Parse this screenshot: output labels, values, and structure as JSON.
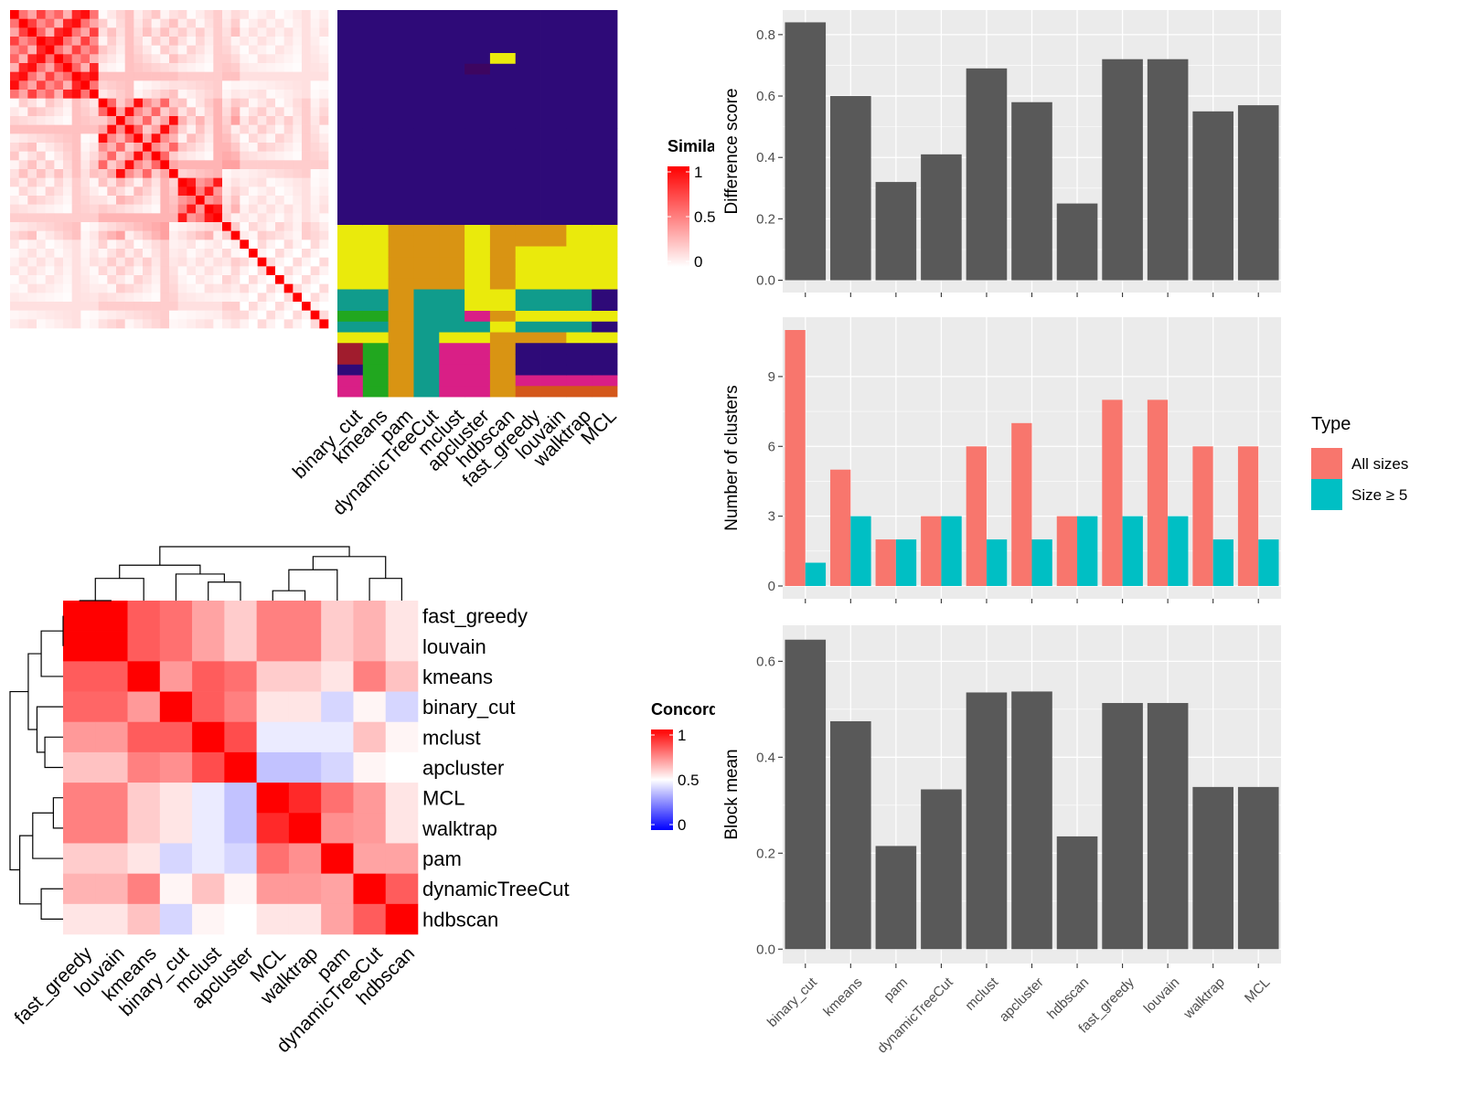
{
  "colors": {
    "sim_high": "#ff0000",
    "sim_low": "#ffffff",
    "conc_high": "#ff0000",
    "conc_mid": "#ffffff",
    "conc_low": "#0000ff",
    "panel_bg": "#ebebeb",
    "grid": "#ffffff",
    "bar": "#595959",
    "all_sizes": "#f8766d",
    "size5": "#00bfc4"
  },
  "chart_data": [
    {
      "id": "similarity",
      "type": "heatmap",
      "legend": {
        "title": "Similarity",
        "ticks": [
          "1",
          "0.5",
          "0"
        ]
      },
      "size": 36,
      "blocks": [
        [
          0,
          10
        ],
        [
          10,
          19
        ],
        [
          19,
          24
        ],
        [
          24,
          26
        ],
        [
          26,
          36
        ]
      ],
      "diag": 1.0,
      "default_offdiag": 0.03,
      "within_block": {
        "0": [
          0.95,
          0.55,
          0.35,
          0.75,
          0.45,
          0.6,
          0.3,
          0.85
        ],
        "1": [
          0.95,
          0.45,
          0.3,
          0.6,
          0.2,
          0.35
        ],
        "2": [
          0.9,
          0.4,
          0.5
        ],
        "3": [
          0.2
        ],
        "4": [
          0.15,
          0.05,
          0.0
        ]
      },
      "between_blocks": {
        "0-1": 0.1,
        "0-2": 0.08,
        "1-2": 0.12,
        "1-3": 0.15,
        "0-3": 0.1,
        "2-3": 0.12,
        "1-4": 0.08,
        "0-4": 0.05,
        "2-4": 0.05,
        "3-4": 0.08
      }
    },
    {
      "id": "assignments",
      "type": "heatmap",
      "methods": [
        "binary_cut",
        "kmeans",
        "pam",
        "dynamicTreeCut",
        "mclust",
        "apcluster",
        "hdbscan",
        "fast_greedy",
        "louvain",
        "walktrap",
        "MCL"
      ],
      "row_count": 36,
      "palette": {
        "a": "#2e0a78",
        "b": "#d99413",
        "c": "#eaea0c",
        "d": "#109c8c",
        "e": "#21a71f",
        "f": "#d91f86",
        "g": "#a01c2d",
        "h": "#0c1f8c",
        "i": "#d4571a",
        "j": "#3d0560"
      },
      "columns": [
        "aaaaaaaaaaabbcccccccdedcgaff",
        "aaaaaaaaaaacccccccccdedceeee",
        "aaaaaaaaaaabbbbbbbbbbbbbbbbb",
        "aaaaaaaaaaabbbbbbbbbdddddddd",
        "aaaaaaaaaaabbbbbbbbbdddcffff",
        "aaaaaaaaaaabbbcccccccfdcffff",
        "aaaaaaaaaaacbbbbbbbbcbcbbbbb",
        "aaaaaaaaaaabbbbbbcccdcdbaafi",
        "aaaaaaaaaaabbbbbbcccdcdbaafi",
        "aaaaaaaaaaacccccccccdcdcaafi",
        "aaaaaaaaaaacccccccccacacaafi"
      ],
      "column_rows": [
        [
          0,
          11
        ],
        [
          11,
          13
        ],
        [
          13,
          20
        ],
        [
          20,
          21
        ],
        [
          21,
          22
        ],
        [
          22,
          23
        ],
        [
          23,
          24
        ],
        [
          24,
          25
        ],
        [
          25,
          26
        ],
        [
          26,
          28
        ],
        [
          28,
          29
        ],
        [
          29,
          30
        ],
        [
          30,
          31
        ],
        [
          31,
          32
        ],
        [
          32,
          33
        ],
        [
          33,
          34
        ],
        [
          34,
          35
        ],
        [
          35,
          36
        ]
      ],
      "overrides": [
        {
          "col": 6,
          "row": 4,
          "color": "c"
        },
        {
          "col": 5,
          "row": 5,
          "color": "j"
        }
      ]
    },
    {
      "id": "concordance",
      "type": "heatmap",
      "legend": {
        "title": "Concordance",
        "ticks": [
          "1",
          "0.5",
          "0"
        ]
      },
      "rows": [
        "fast_greedy",
        "louvain",
        "kmeans",
        "binary_cut",
        "mclust",
        "apcluster",
        "MCL",
        "walktrap",
        "pam",
        "dynamicTreeCut",
        "hdbscan"
      ],
      "cols": [
        "fast_greedy",
        "louvain",
        "kmeans",
        "binary_cut",
        "mclust",
        "apcluster",
        "MCL",
        "walktrap",
        "pam",
        "dynamicTreeCut",
        "hdbscan"
      ],
      "values": [
        [
          1.0,
          1.0,
          0.82,
          0.78,
          0.68,
          0.6,
          0.75,
          0.75,
          0.6,
          0.65,
          0.55
        ],
        [
          1.0,
          1.0,
          0.82,
          0.78,
          0.68,
          0.6,
          0.75,
          0.75,
          0.6,
          0.65,
          0.55
        ],
        [
          0.82,
          0.82,
          1.0,
          0.7,
          0.82,
          0.78,
          0.6,
          0.6,
          0.55,
          0.75,
          0.62
        ],
        [
          0.8,
          0.8,
          0.7,
          1.0,
          0.82,
          0.75,
          0.55,
          0.55,
          0.42,
          0.52,
          0.42
        ],
        [
          0.7,
          0.7,
          0.82,
          0.82,
          1.0,
          0.85,
          0.46,
          0.46,
          0.46,
          0.62,
          0.52
        ],
        [
          0.62,
          0.62,
          0.75,
          0.72,
          0.85,
          1.0,
          0.38,
          0.38,
          0.42,
          0.52,
          0.5
        ],
        [
          0.75,
          0.75,
          0.6,
          0.55,
          0.46,
          0.38,
          1.0,
          0.92,
          0.78,
          0.7,
          0.55
        ],
        [
          0.75,
          0.75,
          0.6,
          0.55,
          0.46,
          0.38,
          0.92,
          1.0,
          0.72,
          0.7,
          0.55
        ],
        [
          0.6,
          0.6,
          0.55,
          0.42,
          0.46,
          0.42,
          0.78,
          0.72,
          1.0,
          0.68,
          0.68
        ],
        [
          0.65,
          0.65,
          0.75,
          0.52,
          0.62,
          0.52,
          0.7,
          0.7,
          0.68,
          1.0,
          0.82
        ],
        [
          0.55,
          0.55,
          0.62,
          0.42,
          0.52,
          0.5,
          0.55,
          0.55,
          0.68,
          0.82,
          1.0
        ]
      ]
    },
    {
      "id": "difference",
      "type": "bar",
      "categories": [
        "binary_cut",
        "kmeans",
        "pam",
        "dynamicTreeCut",
        "mclust",
        "apcluster",
        "hdbscan",
        "fast_greedy",
        "louvain",
        "walktrap",
        "MCL"
      ],
      "values": [
        0.84,
        0.6,
        0.32,
        0.41,
        0.69,
        0.58,
        0.25,
        0.72,
        0.72,
        0.55,
        0.57
      ],
      "ylabel": "Difference score",
      "ylim": [
        -0.04,
        0.88
      ],
      "yticks": [
        "0.0",
        "0.2",
        "0.4",
        "0.6",
        "0.8"
      ],
      "grid": true
    },
    {
      "id": "nclusters",
      "type": "bar",
      "categories": [
        "binary_cut",
        "kmeans",
        "pam",
        "dynamicTreeCut",
        "mclust",
        "apcluster",
        "hdbscan",
        "fast_greedy",
        "louvain",
        "walktrap",
        "MCL"
      ],
      "series": [
        {
          "name": "All sizes",
          "values": [
            11,
            5,
            2,
            3,
            6,
            7,
            3,
            8,
            8,
            6,
            6
          ]
        },
        {
          "name": "Size ≥ 5",
          "values": [
            1,
            3,
            2,
            3,
            2,
            2,
            3,
            3,
            3,
            2,
            2
          ]
        }
      ],
      "ylabel": "Number of clusters",
      "ylim": [
        -0.55,
        11.55
      ],
      "yticks": [
        "0",
        "3",
        "6",
        "9"
      ],
      "legend": {
        "title": "Type",
        "position": "right"
      },
      "grid": true
    },
    {
      "id": "blockmean",
      "type": "bar",
      "categories": [
        "binary_cut",
        "kmeans",
        "pam",
        "dynamicTreeCut",
        "mclust",
        "apcluster",
        "hdbscan",
        "fast_greedy",
        "louvain",
        "walktrap",
        "MCL"
      ],
      "values": [
        0.645,
        0.475,
        0.215,
        0.333,
        0.535,
        0.537,
        0.235,
        0.513,
        0.513,
        0.338,
        0.338
      ],
      "ylabel": "Block mean",
      "ylim": [
        -0.03,
        0.675
      ],
      "yticks": [
        "0.0",
        "0.2",
        "0.4",
        "0.6"
      ],
      "grid": true
    }
  ]
}
